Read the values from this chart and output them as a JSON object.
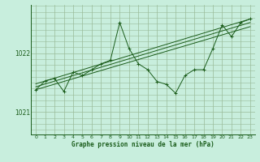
{
  "xlabel": "Graphe pression niveau de la mer (hPa)",
  "background_color": "#c8eedd",
  "grid_color": "#99bb99",
  "line_color": "#1a5c1a",
  "xlim": [
    -0.5,
    23.5
  ],
  "ylim": [
    1020.62,
    1022.82
  ],
  "yticks": [
    1021,
    1022
  ],
  "xticks": [
    0,
    1,
    2,
    3,
    4,
    5,
    6,
    7,
    8,
    9,
    10,
    11,
    12,
    13,
    14,
    15,
    16,
    17,
    18,
    19,
    20,
    21,
    22,
    23
  ],
  "series1": [
    1021.38,
    1021.53,
    1021.57,
    1021.35,
    1021.68,
    1021.62,
    1021.72,
    1021.82,
    1021.88,
    1022.52,
    1022.08,
    1021.82,
    1021.72,
    1021.52,
    1021.47,
    1021.32,
    1021.62,
    1021.72,
    1021.72,
    1022.08,
    1022.48,
    1022.28,
    1022.52,
    1022.58
  ],
  "trend1": [
    1021.38,
    1022.45
  ],
  "trend2": [
    1021.43,
    1022.52
  ],
  "trend3": [
    1021.48,
    1022.58
  ],
  "trend_x": [
    0,
    23
  ]
}
